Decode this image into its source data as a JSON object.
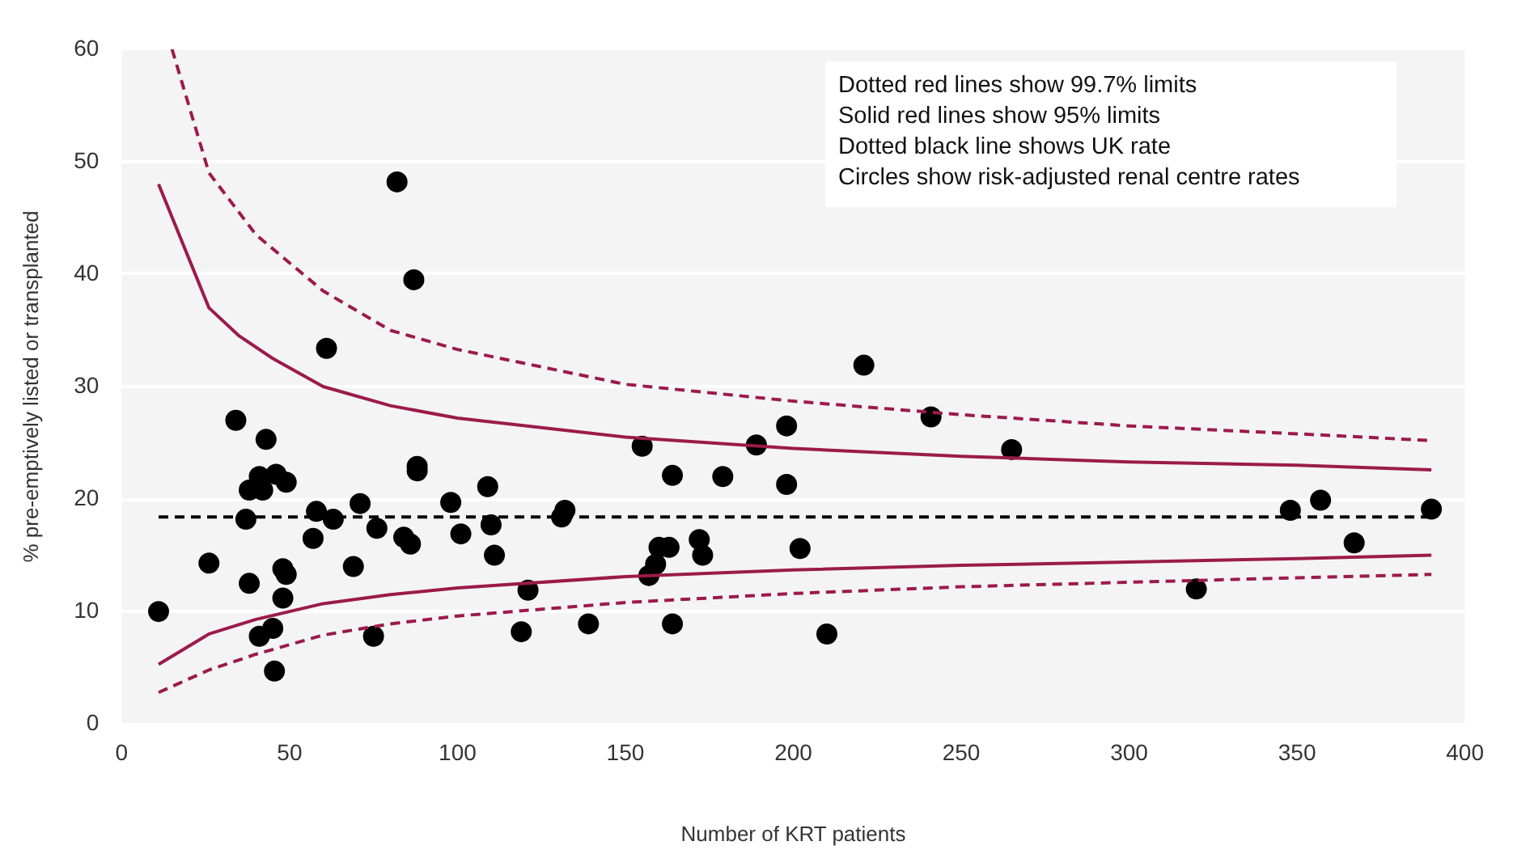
{
  "chart_data": {
    "type": "scatter",
    "xlabel": "Number of KRT patients",
    "ylabel": "% pre-emptively listed or transplanted",
    "xlim": [
      0,
      400
    ],
    "xticks": [
      0,
      50,
      100,
      150,
      200,
      250,
      300,
      350,
      400
    ],
    "ylim": [
      0,
      60
    ],
    "yticks": [
      0,
      10,
      20,
      30,
      40,
      50,
      60
    ],
    "grid": "y",
    "legend": false,
    "annotations": [
      "Dotted red lines show 99.7% limits",
      "Solid red lines show 95% limits",
      "Dotted black line shows UK rate",
      "Circles show risk-adjusted renal centre rates"
    ],
    "ref_lines": [
      {
        "axis": "y",
        "value": 18.4,
        "color": "#000000",
        "line_style": "dashed"
      }
    ],
    "series": [
      {
        "type": "line",
        "color": "#9b1b4a",
        "line_style": "dashed",
        "marker": "none",
        "x": [
          15,
          26,
          40,
          60,
          80,
          100,
          150,
          200,
          250,
          300,
          350,
          390
        ],
        "values": [
          60,
          49,
          43.5,
          38.5,
          35,
          33.3,
          30.2,
          28.7,
          27.5,
          26.5,
          25.8,
          25.2
        ]
      },
      {
        "type": "line",
        "color": "#9b1b4a",
        "line_style": "solid",
        "marker": "none",
        "x": [
          11,
          26,
          35,
          45,
          60,
          80,
          100,
          150,
          200,
          250,
          300,
          350,
          390
        ],
        "values": [
          48,
          37,
          34.5,
          32.5,
          30,
          28.3,
          27.2,
          25.5,
          24.5,
          23.8,
          23.3,
          23,
          22.6
        ]
      },
      {
        "type": "line",
        "color": "#9b1b4a",
        "line_style": "solid",
        "marker": "none",
        "x": [
          11,
          26,
          40,
          60,
          80,
          100,
          150,
          200,
          250,
          300,
          350,
          390
        ],
        "values": [
          5.3,
          8,
          9.3,
          10.7,
          11.5,
          12.1,
          13.1,
          13.7,
          14.1,
          14.4,
          14.7,
          15
        ]
      },
      {
        "type": "line",
        "color": "#9b1b4a",
        "line_style": "dashed",
        "marker": "none",
        "x": [
          11,
          26,
          40,
          60,
          80,
          100,
          150,
          200,
          250,
          300,
          350,
          390
        ],
        "values": [
          2.8,
          4.8,
          6.2,
          7.9,
          8.9,
          9.6,
          10.8,
          11.6,
          12.2,
          12.6,
          13,
          13.3
        ]
      },
      {
        "type": "scatter",
        "color": "#000000",
        "marker": "circle",
        "x": [
          11,
          26,
          34,
          37,
          38,
          38,
          41,
          41,
          42,
          43,
          45,
          45.5,
          46,
          48,
          48,
          49,
          49,
          57,
          58,
          61,
          63,
          69,
          71,
          75,
          76,
          82,
          84,
          86,
          87,
          88,
          88,
          98,
          101,
          109,
          110,
          111,
          119,
          121,
          131,
          132,
          139,
          155,
          157,
          159,
          160,
          163,
          164,
          164,
          172,
          173,
          179,
          189,
          198,
          198,
          202,
          210,
          221,
          241,
          265,
          320,
          348,
          357,
          367,
          390
        ],
        "values": [
          10,
          14.3,
          27,
          18.2,
          20.8,
          12.5,
          22,
          7.8,
          20.8,
          25.3,
          8.5,
          4.7,
          22.2,
          13.8,
          11.2,
          13.3,
          21.5,
          16.5,
          18.9,
          33.4,
          18.2,
          14,
          19.6,
          7.8,
          17.4,
          48.2,
          16.6,
          16,
          39.5,
          22.9,
          22.5,
          19.7,
          16.9,
          21.1,
          17.7,
          15,
          8.2,
          11.9,
          18.4,
          19,
          8.9,
          24.7,
          13.2,
          14.2,
          15.7,
          15.7,
          22.1,
          8.9,
          16.4,
          15,
          22,
          24.8,
          26.5,
          21.3,
          15.6,
          8,
          31.9,
          27.3,
          24.4,
          12,
          19,
          19.9,
          16.1,
          19.1
        ]
      }
    ]
  }
}
